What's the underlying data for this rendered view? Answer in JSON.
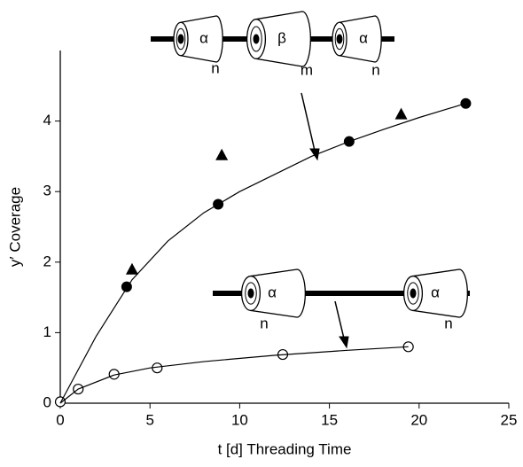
{
  "chart_data": {
    "type": "scatter",
    "xlabel": "t [d] Threading Time",
    "ylabel": "y′ Coverage",
    "xlim": [
      0,
      25
    ],
    "xticks": [
      0,
      5,
      10,
      15,
      20,
      25
    ],
    "ylim": [
      0,
      5
    ],
    "yticks": [
      0,
      1,
      2,
      3,
      4
    ],
    "series": [
      {
        "marker": "filled-circle",
        "color": "#000000",
        "x": [
          3.7,
          8.8,
          16.1,
          22.6
        ],
        "values": [
          1.65,
          2.82,
          3.71,
          4.25
        ]
      },
      {
        "marker": "triangle",
        "color": "#000000",
        "x": [
          4.0,
          9.0,
          19.0
        ],
        "values": [
          1.9,
          3.52,
          4.1
        ]
      },
      {
        "marker": "open-circle",
        "color": "#000000",
        "x": [
          0,
          1.0,
          3.0,
          5.4,
          12.4,
          19.4
        ],
        "values": [
          0.02,
          0.2,
          0.41,
          0.5,
          0.69,
          0.8
        ]
      },
      {
        "marker": "line",
        "color": "#000000",
        "x": [
          0,
          2,
          4,
          6,
          8,
          10,
          12,
          14,
          16,
          18,
          20,
          22.6
        ],
        "values": [
          0,
          0.95,
          1.75,
          2.3,
          2.7,
          3.0,
          3.25,
          3.5,
          3.7,
          3.88,
          4.05,
          4.25
        ]
      },
      {
        "marker": "line",
        "color": "#000000",
        "x": [
          0,
          1,
          3,
          5,
          8,
          12,
          16,
          19.4
        ],
        "values": [
          0,
          0.2,
          0.4,
          0.5,
          0.59,
          0.68,
          0.75,
          0.8
        ]
      }
    ],
    "annotations": [
      "α",
      "n",
      "β",
      "m",
      "α",
      "n",
      "α",
      "n",
      "α",
      "n"
    ]
  }
}
